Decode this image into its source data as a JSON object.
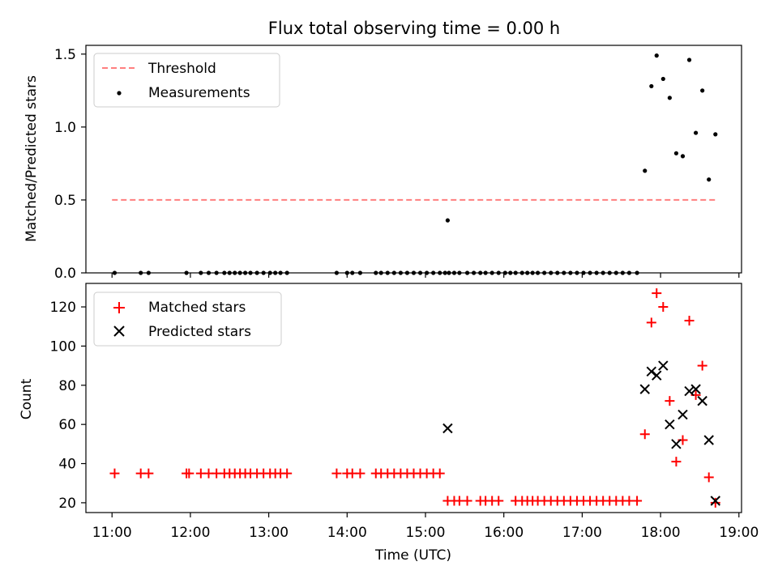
{
  "figure": {
    "title": "Flux total observing time = 0.00 h",
    "xlabel": "Time (UTC)"
  },
  "colors": {
    "threshold": "#ff7f7f",
    "measurements": "#000000",
    "matched": "#ff0000",
    "predicted": "#000000"
  },
  "chart_data": [
    {
      "type": "scatter",
      "panel": "top",
      "xlabel": "",
      "ylabel": "Matched/Predicted stars",
      "xlim": [
        "10:40",
        "19:02"
      ],
      "ylim": [
        0,
        1.56
      ],
      "yticks": [
        0.0,
        0.5,
        1.0,
        1.5
      ],
      "ytick_labels": [
        "0.0",
        "0.5",
        "1.0",
        "1.5"
      ],
      "grid": false,
      "legend": {
        "location": "upper-left",
        "entries": [
          "Threshold",
          "Measurements"
        ]
      },
      "threshold": {
        "value": 0.5,
        "x_start": "11:00",
        "x_end": "18:44",
        "style": "dashed"
      },
      "series": [
        {
          "name": "Measurements",
          "marker": "dot",
          "points": [
            [
              "11:02",
              0
            ],
            [
              "11:22",
              0
            ],
            [
              "11:28",
              0
            ],
            [
              "11:57",
              0
            ],
            [
              "12:08",
              0
            ],
            [
              "12:14",
              0
            ],
            [
              "12:20",
              0
            ],
            [
              "12:26",
              0
            ],
            [
              "12:30",
              0
            ],
            [
              "12:34",
              0
            ],
            [
              "12:38",
              0
            ],
            [
              "12:42",
              0
            ],
            [
              "12:46",
              0
            ],
            [
              "12:51",
              0
            ],
            [
              "12:56",
              0
            ],
            [
              "13:01",
              0
            ],
            [
              "13:05",
              0
            ],
            [
              "13:09",
              0
            ],
            [
              "13:14",
              0
            ],
            [
              "13:52",
              0
            ],
            [
              "14:00",
              0
            ],
            [
              "14:04",
              0
            ],
            [
              "14:10",
              0
            ],
            [
              "14:22",
              0
            ],
            [
              "14:26",
              0
            ],
            [
              "14:31",
              0
            ],
            [
              "14:36",
              0
            ],
            [
              "14:41",
              0
            ],
            [
              "14:46",
              0
            ],
            [
              "14:51",
              0
            ],
            [
              "14:56",
              0
            ],
            [
              "15:01",
              0
            ],
            [
              "15:06",
              0
            ],
            [
              "15:11",
              0
            ],
            [
              "15:15",
              0
            ],
            [
              "15:18",
              0
            ],
            [
              "15:22",
              0
            ],
            [
              "15:17",
              0.36
            ],
            [
              "15:26",
              0
            ],
            [
              "15:32",
              0
            ],
            [
              "15:37",
              0
            ],
            [
              "15:42",
              0
            ],
            [
              "15:46",
              0
            ],
            [
              "15:51",
              0
            ],
            [
              "15:56",
              0
            ],
            [
              "16:01",
              0
            ],
            [
              "16:05",
              0
            ],
            [
              "16:09",
              0
            ],
            [
              "16:14",
              0
            ],
            [
              "16:18",
              0
            ],
            [
              "16:22",
              0
            ],
            [
              "16:26",
              0
            ],
            [
              "16:31",
              0
            ],
            [
              "16:36",
              0
            ],
            [
              "16:41",
              0
            ],
            [
              "16:46",
              0
            ],
            [
              "16:51",
              0
            ],
            [
              "16:56",
              0
            ],
            [
              "17:01",
              0
            ],
            [
              "17:06",
              0
            ],
            [
              "17:11",
              0
            ],
            [
              "17:16",
              0
            ],
            [
              "17:21",
              0
            ],
            [
              "17:26",
              0
            ],
            [
              "17:31",
              0
            ],
            [
              "17:36",
              0
            ],
            [
              "17:42",
              0
            ],
            [
              "17:48",
              0.7
            ],
            [
              "17:53",
              1.28
            ],
            [
              "17:57",
              1.49
            ],
            [
              "18:02",
              1.33
            ],
            [
              "18:07",
              1.2
            ],
            [
              "18:12",
              0.82
            ],
            [
              "18:17",
              0.8
            ],
            [
              "18:22",
              1.46
            ],
            [
              "18:27",
              0.96
            ],
            [
              "18:32",
              1.25
            ],
            [
              "18:37",
              0.64
            ],
            [
              "18:42",
              0.95
            ]
          ]
        }
      ]
    },
    {
      "type": "scatter",
      "panel": "bottom",
      "xlabel": "Time (UTC)",
      "ylabel": "Count",
      "xlim": [
        "10:40",
        "19:02"
      ],
      "ylim": [
        15,
        132
      ],
      "xticks": [
        "11:00",
        "12:00",
        "13:00",
        "14:00",
        "15:00",
        "16:00",
        "17:00",
        "18:00",
        "19:00"
      ],
      "yticks": [
        20,
        40,
        60,
        80,
        100,
        120
      ],
      "ytick_labels": [
        "20",
        "40",
        "60",
        "80",
        "100",
        "120"
      ],
      "grid": false,
      "legend": {
        "location": "upper-left",
        "entries": [
          "Matched stars",
          "Predicted stars"
        ]
      },
      "series": [
        {
          "name": "Matched stars",
          "marker": "plus",
          "points": [
            [
              "11:02",
              35
            ],
            [
              "11:22",
              35
            ],
            [
              "11:28",
              35
            ],
            [
              "11:57",
              35
            ],
            [
              "11:59",
              35
            ],
            [
              "12:08",
              35
            ],
            [
              "12:14",
              35
            ],
            [
              "12:20",
              35
            ],
            [
              "12:26",
              35
            ],
            [
              "12:30",
              35
            ],
            [
              "12:34",
              35
            ],
            [
              "12:38",
              35
            ],
            [
              "12:42",
              35
            ],
            [
              "12:46",
              35
            ],
            [
              "12:51",
              35
            ],
            [
              "12:56",
              35
            ],
            [
              "13:01",
              35
            ],
            [
              "13:05",
              35
            ],
            [
              "13:09",
              35
            ],
            [
              "13:14",
              35
            ],
            [
              "13:52",
              35
            ],
            [
              "14:00",
              35
            ],
            [
              "14:04",
              35
            ],
            [
              "14:10",
              35
            ],
            [
              "14:22",
              35
            ],
            [
              "14:26",
              35
            ],
            [
              "14:31",
              35
            ],
            [
              "14:36",
              35
            ],
            [
              "14:41",
              35
            ],
            [
              "14:46",
              35
            ],
            [
              "14:51",
              35
            ],
            [
              "14:56",
              35
            ],
            [
              "15:01",
              35
            ],
            [
              "15:06",
              35
            ],
            [
              "15:11",
              35
            ],
            [
              "15:17",
              21
            ],
            [
              "15:22",
              21
            ],
            [
              "15:26",
              21
            ],
            [
              "15:32",
              21
            ],
            [
              "15:42",
              21
            ],
            [
              "15:46",
              21
            ],
            [
              "15:51",
              21
            ],
            [
              "15:56",
              21
            ],
            [
              "16:09",
              21
            ],
            [
              "16:14",
              21
            ],
            [
              "16:18",
              21
            ],
            [
              "16:22",
              21
            ],
            [
              "16:26",
              21
            ],
            [
              "16:31",
              21
            ],
            [
              "16:36",
              21
            ],
            [
              "16:41",
              21
            ],
            [
              "16:46",
              21
            ],
            [
              "16:51",
              21
            ],
            [
              "16:56",
              21
            ],
            [
              "17:01",
              21
            ],
            [
              "17:06",
              21
            ],
            [
              "17:11",
              21
            ],
            [
              "17:16",
              21
            ],
            [
              "17:21",
              21
            ],
            [
              "17:26",
              21
            ],
            [
              "17:31",
              21
            ],
            [
              "17:36",
              21
            ],
            [
              "17:42",
              21
            ],
            [
              "17:48",
              55
            ],
            [
              "17:53",
              112
            ],
            [
              "17:57",
              127
            ],
            [
              "18:02",
              120
            ],
            [
              "18:07",
              72
            ],
            [
              "18:12",
              41
            ],
            [
              "18:17",
              52
            ],
            [
              "18:22",
              113
            ],
            [
              "18:27",
              75
            ],
            [
              "18:32",
              90
            ],
            [
              "18:37",
              33
            ],
            [
              "18:42",
              20
            ]
          ]
        },
        {
          "name": "Predicted stars",
          "marker": "x",
          "points": [
            [
              "15:17",
              58
            ],
            [
              "17:48",
              78
            ],
            [
              "17:53",
              87
            ],
            [
              "17:57",
              85
            ],
            [
              "18:02",
              90
            ],
            [
              "18:07",
              60
            ],
            [
              "18:12",
              50
            ],
            [
              "18:17",
              65
            ],
            [
              "18:22",
              77
            ],
            [
              "18:27",
              78
            ],
            [
              "18:32",
              72
            ],
            [
              "18:37",
              52
            ],
            [
              "18:42",
              21
            ]
          ]
        }
      ]
    }
  ]
}
